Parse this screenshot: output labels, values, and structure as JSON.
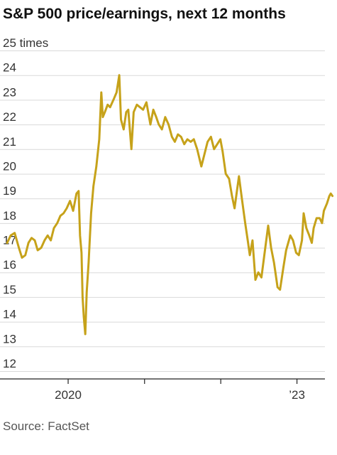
{
  "title": "S&P 500 price/earnings, next 12 months",
  "source": "Source: FactSet",
  "chart_data": {
    "type": "line",
    "title": "S&P 500 price/earnings, next 12 months",
    "unit_label": "25 times",
    "ylim": [
      12,
      25
    ],
    "y_ticks": [
      {
        "value": 25,
        "label": "25 times"
      },
      {
        "value": 24,
        "label": "24"
      },
      {
        "value": 23,
        "label": "23"
      },
      {
        "value": 22,
        "label": "22"
      },
      {
        "value": 21,
        "label": "21"
      },
      {
        "value": 20,
        "label": "20"
      },
      {
        "value": 19,
        "label": "19"
      },
      {
        "value": 18,
        "label": "18"
      },
      {
        "value": 17,
        "label": "17"
      },
      {
        "value": 16,
        "label": "16"
      },
      {
        "value": 15,
        "label": "15"
      },
      {
        "value": 14,
        "label": "14"
      },
      {
        "value": 13,
        "label": "13"
      },
      {
        "value": 12,
        "label": "12"
      }
    ],
    "xlim": [
      "2019-03-01",
      "2023-05-15"
    ],
    "x_ticks": [
      {
        "date": "2020-01-01",
        "label": "2020"
      },
      {
        "date": "2021-01-01",
        "label": ""
      },
      {
        "date": "2022-01-01",
        "label": ""
      },
      {
        "date": "2023-01-01",
        "label": "’23"
      }
    ],
    "grid": true,
    "line_color": "#c6a21a",
    "series": [
      {
        "points": [
          [
            "2019-03-15",
            17.2
          ],
          [
            "2019-04-01",
            17.5
          ],
          [
            "2019-04-20",
            17.6
          ],
          [
            "2019-05-10",
            17.0
          ],
          [
            "2019-05-25",
            16.6
          ],
          [
            "2019-06-10",
            16.7
          ],
          [
            "2019-06-25",
            17.2
          ],
          [
            "2019-07-10",
            17.4
          ],
          [
            "2019-07-25",
            17.3
          ],
          [
            "2019-08-08",
            16.9
          ],
          [
            "2019-08-25",
            17.0
          ],
          [
            "2019-09-10",
            17.3
          ],
          [
            "2019-09-25",
            17.5
          ],
          [
            "2019-10-10",
            17.3
          ],
          [
            "2019-10-25",
            17.8
          ],
          [
            "2019-11-10",
            18.0
          ],
          [
            "2019-11-25",
            18.3
          ],
          [
            "2019-12-10",
            18.4
          ],
          [
            "2019-12-25",
            18.6
          ],
          [
            "2020-01-10",
            18.9
          ],
          [
            "2020-01-25",
            18.5
          ],
          [
            "2020-02-10",
            19.2
          ],
          [
            "2020-02-20",
            19.3
          ],
          [
            "2020-02-27",
            17.5
          ],
          [
            "2020-03-05",
            16.8
          ],
          [
            "2020-03-10",
            15.0
          ],
          [
            "2020-03-16",
            14.2
          ],
          [
            "2020-03-23",
            13.5
          ],
          [
            "2020-03-30",
            15.2
          ],
          [
            "2020-04-08",
            16.4
          ],
          [
            "2020-04-20",
            18.4
          ],
          [
            "2020-05-01",
            19.5
          ],
          [
            "2020-05-15",
            20.3
          ],
          [
            "2020-05-29",
            21.4
          ],
          [
            "2020-06-08",
            23.3
          ],
          [
            "2020-06-15",
            22.3
          ],
          [
            "2020-06-25",
            22.5
          ],
          [
            "2020-07-08",
            22.8
          ],
          [
            "2020-07-20",
            22.7
          ],
          [
            "2020-08-05",
            23.0
          ],
          [
            "2020-08-20",
            23.3
          ],
          [
            "2020-09-02",
            24.0
          ],
          [
            "2020-09-10",
            22.2
          ],
          [
            "2020-09-23",
            21.8
          ],
          [
            "2020-10-05",
            22.5
          ],
          [
            "2020-10-15",
            22.6
          ],
          [
            "2020-10-30",
            21.0
          ],
          [
            "2020-11-10",
            22.5
          ],
          [
            "2020-11-25",
            22.8
          ],
          [
            "2020-12-10",
            22.7
          ],
          [
            "2020-12-25",
            22.6
          ],
          [
            "2021-01-10",
            22.9
          ],
          [
            "2021-01-29",
            22.0
          ],
          [
            "2021-02-12",
            22.6
          ],
          [
            "2021-02-26",
            22.3
          ],
          [
            "2021-03-10",
            22.0
          ],
          [
            "2021-03-25",
            21.8
          ],
          [
            "2021-04-10",
            22.3
          ],
          [
            "2021-04-26",
            22.0
          ],
          [
            "2021-05-12",
            21.5
          ],
          [
            "2021-05-26",
            21.3
          ],
          [
            "2021-06-10",
            21.6
          ],
          [
            "2021-06-25",
            21.5
          ],
          [
            "2021-07-10",
            21.2
          ],
          [
            "2021-07-25",
            21.4
          ],
          [
            "2021-08-10",
            21.3
          ],
          [
            "2021-08-25",
            21.4
          ],
          [
            "2021-09-10",
            21.0
          ],
          [
            "2021-09-30",
            20.3
          ],
          [
            "2021-10-15",
            20.8
          ],
          [
            "2021-10-30",
            21.3
          ],
          [
            "2021-11-15",
            21.5
          ],
          [
            "2021-11-30",
            21.0
          ],
          [
            "2021-12-15",
            21.2
          ],
          [
            "2021-12-30",
            21.4
          ],
          [
            "2022-01-10",
            20.9
          ],
          [
            "2022-01-25",
            20.0
          ],
          [
            "2022-02-10",
            19.8
          ],
          [
            "2022-02-24",
            19.1
          ],
          [
            "2022-03-08",
            18.6
          ],
          [
            "2022-03-29",
            19.9
          ],
          [
            "2022-04-12",
            19.0
          ],
          [
            "2022-04-28",
            18.0
          ],
          [
            "2022-05-12",
            17.2
          ],
          [
            "2022-05-20",
            16.7
          ],
          [
            "2022-06-02",
            17.3
          ],
          [
            "2022-06-16",
            15.7
          ],
          [
            "2022-06-30",
            16.0
          ],
          [
            "2022-07-15",
            15.8
          ],
          [
            "2022-07-30",
            16.8
          ],
          [
            "2022-08-16",
            17.9
          ],
          [
            "2022-08-30",
            17.0
          ],
          [
            "2022-09-13",
            16.4
          ],
          [
            "2022-09-30",
            15.4
          ],
          [
            "2022-10-12",
            15.3
          ],
          [
            "2022-10-28",
            16.2
          ],
          [
            "2022-11-10",
            16.9
          ],
          [
            "2022-11-30",
            17.5
          ],
          [
            "2022-12-13",
            17.3
          ],
          [
            "2022-12-28",
            16.8
          ],
          [
            "2023-01-10",
            16.7
          ],
          [
            "2023-01-25",
            17.3
          ],
          [
            "2023-02-02",
            18.4
          ],
          [
            "2023-02-15",
            17.8
          ],
          [
            "2023-03-01",
            17.5
          ],
          [
            "2023-03-13",
            17.2
          ],
          [
            "2023-03-22",
            17.8
          ],
          [
            "2023-04-05",
            18.2
          ],
          [
            "2023-04-20",
            18.2
          ],
          [
            "2023-05-01",
            18.0
          ],
          [
            "2023-05-10",
            18.5
          ],
          [
            "2023-05-25",
            18.8
          ],
          [
            "2023-06-05",
            19.1
          ],
          [
            "2023-06-12",
            19.2
          ],
          [
            "2023-06-20",
            19.1
          ]
        ]
      }
    ]
  }
}
